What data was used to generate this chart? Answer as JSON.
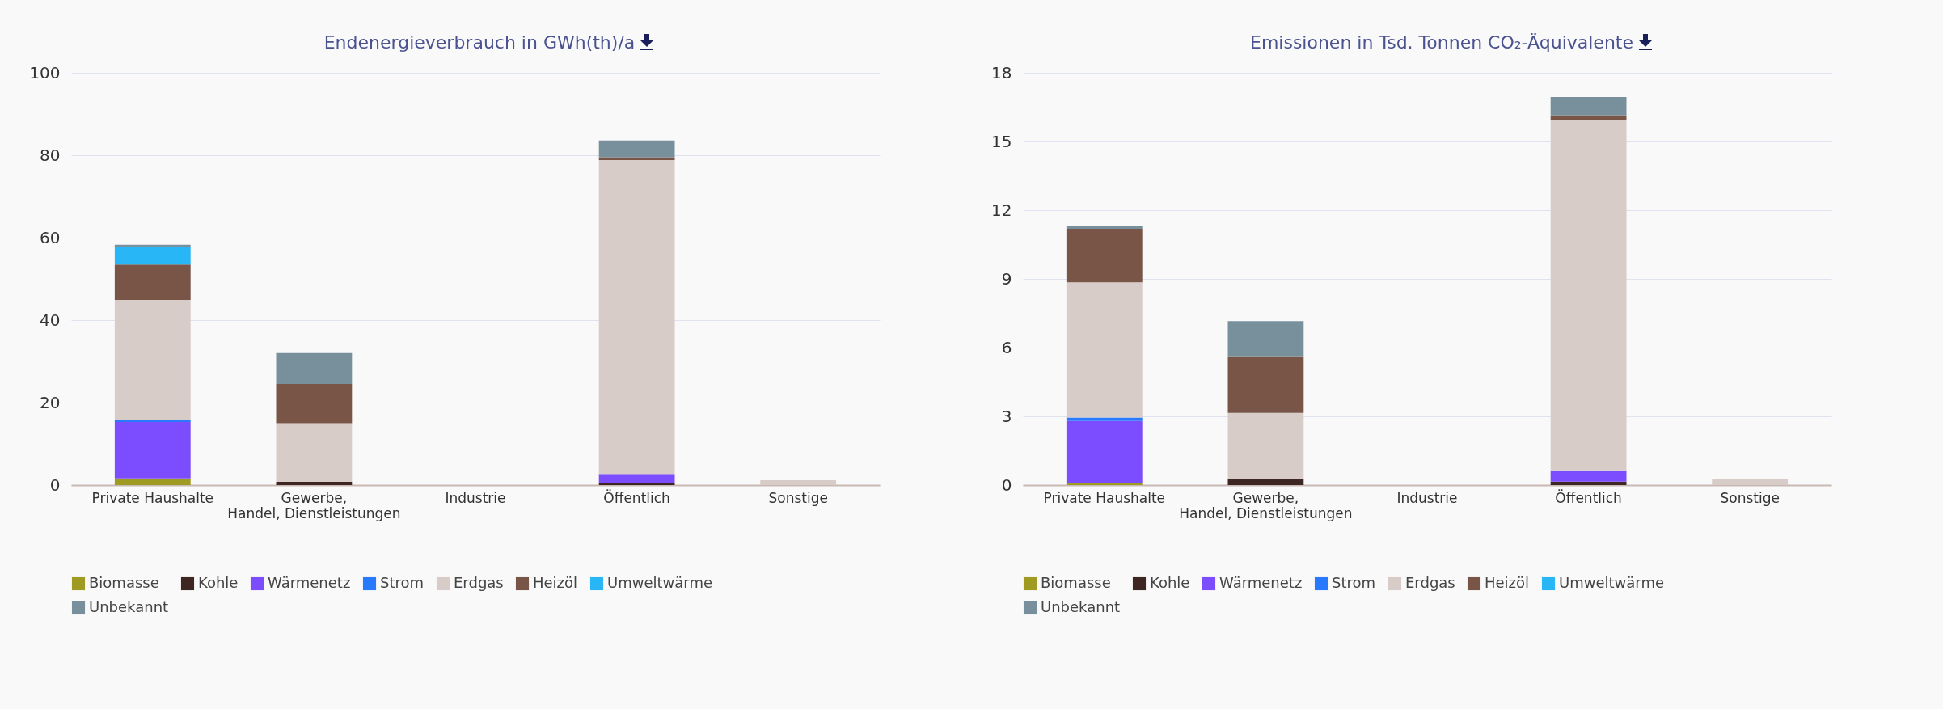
{
  "chart_data": [
    {
      "type": "bar",
      "title": "Endenergieverbrauch in GWh(th)/a",
      "stacked": true,
      "grid": "y",
      "legend": "bottom",
      "categories": [
        "Private Haushalte",
        "Gewerbe, Handel, Dienstleistungen",
        "Industrie",
        "Öffentlich",
        "Sonstige"
      ],
      "ylim": [
        0,
        100
      ],
      "yticks": [
        0,
        20,
        40,
        60,
        80,
        100
      ],
      "series": [
        {
          "name": "Biomasse",
          "color": "#9e9a22",
          "values": [
            1.6,
            0,
            0,
            0,
            0
          ]
        },
        {
          "name": "Kohle",
          "color": "#3e2723",
          "values": [
            0,
            0.8,
            0,
            0.4,
            0
          ]
        },
        {
          "name": "Wärmenetz",
          "color": "#7c4dff",
          "values": [
            13.7,
            0,
            0,
            2.3,
            0
          ]
        },
        {
          "name": "Strom",
          "color": "#2979ff",
          "values": [
            0.4,
            0,
            0,
            0,
            0
          ]
        },
        {
          "name": "Erdgas",
          "color": "#d7ccc8",
          "values": [
            29.2,
            14.2,
            0,
            76.1,
            1.2
          ]
        },
        {
          "name": "Heizöl",
          "color": "#795548",
          "values": [
            8.6,
            9.5,
            0,
            0.7,
            0
          ]
        },
        {
          "name": "Umweltwärme",
          "color": "#29b6f6",
          "values": [
            4.2,
            0,
            0,
            0,
            0
          ]
        },
        {
          "name": "Unbekannt",
          "color": "#78909c",
          "values": [
            0.6,
            7.5,
            0,
            4.1,
            0
          ]
        }
      ]
    },
    {
      "type": "bar",
      "title": "Emissionen in Tsd. Tonnen CO₂-Äquivalente",
      "stacked": true,
      "grid": "y",
      "legend": "bottom",
      "categories": [
        "Private Haushalte",
        "Gewerbe, Handel, Dienstleistungen",
        "Industrie",
        "Öffentlich",
        "Sonstige"
      ],
      "ylim": [
        0,
        18
      ],
      "yticks": [
        0,
        3,
        6,
        9,
        12,
        15,
        18
      ],
      "series": [
        {
          "name": "Biomasse",
          "color": "#9e9a22",
          "values": [
            0.07,
            0,
            0,
            0,
            0
          ]
        },
        {
          "name": "Kohle",
          "color": "#3e2723",
          "values": [
            0,
            0.27,
            0,
            0.15,
            0
          ]
        },
        {
          "name": "Wärmenetz",
          "color": "#7c4dff",
          "values": [
            2.73,
            0,
            0,
            0.49,
            0
          ]
        },
        {
          "name": "Strom",
          "color": "#2979ff",
          "values": [
            0.15,
            0,
            0,
            0,
            0
          ]
        },
        {
          "name": "Erdgas",
          "color": "#d7ccc8",
          "values": [
            5.9,
            2.88,
            0,
            15.29,
            0.25
          ]
        },
        {
          "name": "Heizöl",
          "color": "#795548",
          "values": [
            2.34,
            2.48,
            0,
            0.22,
            0
          ]
        },
        {
          "name": "Umweltwärme",
          "color": "#29b6f6",
          "values": [
            0,
            0,
            0,
            0,
            0
          ]
        },
        {
          "name": "Unbekannt",
          "color": "#78909c",
          "values": [
            0.12,
            1.53,
            0,
            0.79,
            0
          ]
        }
      ]
    }
  ]
}
